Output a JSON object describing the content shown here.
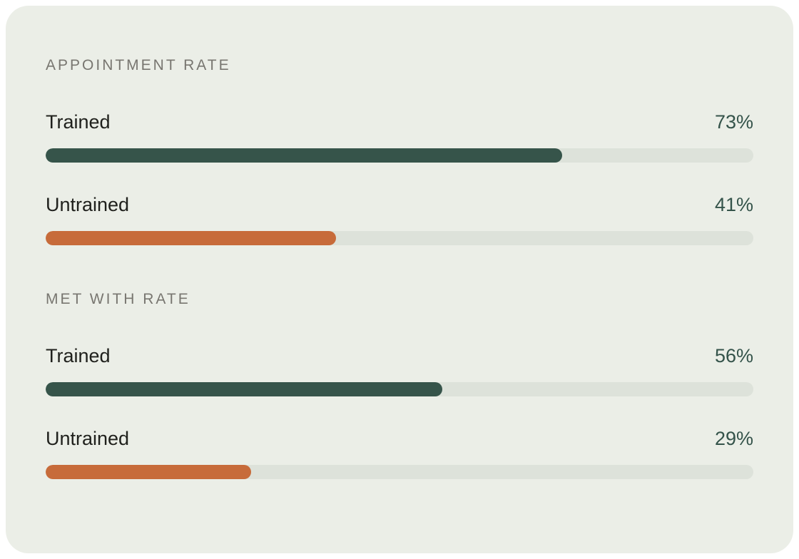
{
  "colors": {
    "page_bg": "#ffffff",
    "card_bg": "#ebeee7",
    "track": "#dde2da",
    "trained": "#36544a",
    "untrained": "#c76b3a",
    "label_text": "#20211d",
    "percent_text": "#34534a",
    "header_text": "#787670"
  },
  "sections": [
    {
      "title": "APPOINTMENT RATE",
      "rows": [
        {
          "label": "Trained",
          "value": 73,
          "percent_label": "73%",
          "series": "trained"
        },
        {
          "label": "Untrained",
          "value": 41,
          "percent_label": "41%",
          "series": "untrained"
        }
      ]
    },
    {
      "title": "MET WITH RATE",
      "rows": [
        {
          "label": "Trained",
          "value": 56,
          "percent_label": "56%",
          "series": "trained"
        },
        {
          "label": "Untrained",
          "value": 29,
          "percent_label": "29%",
          "series": "untrained"
        }
      ]
    }
  ],
  "chart_data": [
    {
      "type": "bar",
      "orientation": "horizontal",
      "title": "APPOINTMENT RATE",
      "categories": [
        "Trained",
        "Untrained"
      ],
      "values": [
        73,
        41
      ],
      "value_labels": [
        "73%",
        "41%"
      ],
      "unit": "%",
      "xlim": [
        0,
        100
      ],
      "grid": false,
      "legend": "none",
      "bar_colors": [
        "#36544a",
        "#c76b3a"
      ],
      "track_color": "#dde2da"
    },
    {
      "type": "bar",
      "orientation": "horizontal",
      "title": "MET WITH RATE",
      "categories": [
        "Trained",
        "Untrained"
      ],
      "values": [
        56,
        29
      ],
      "value_labels": [
        "56%",
        "29%"
      ],
      "unit": "%",
      "xlim": [
        0,
        100
      ],
      "grid": false,
      "legend": "none",
      "bar_colors": [
        "#36544a",
        "#c76b3a"
      ],
      "track_color": "#dde2da"
    }
  ]
}
